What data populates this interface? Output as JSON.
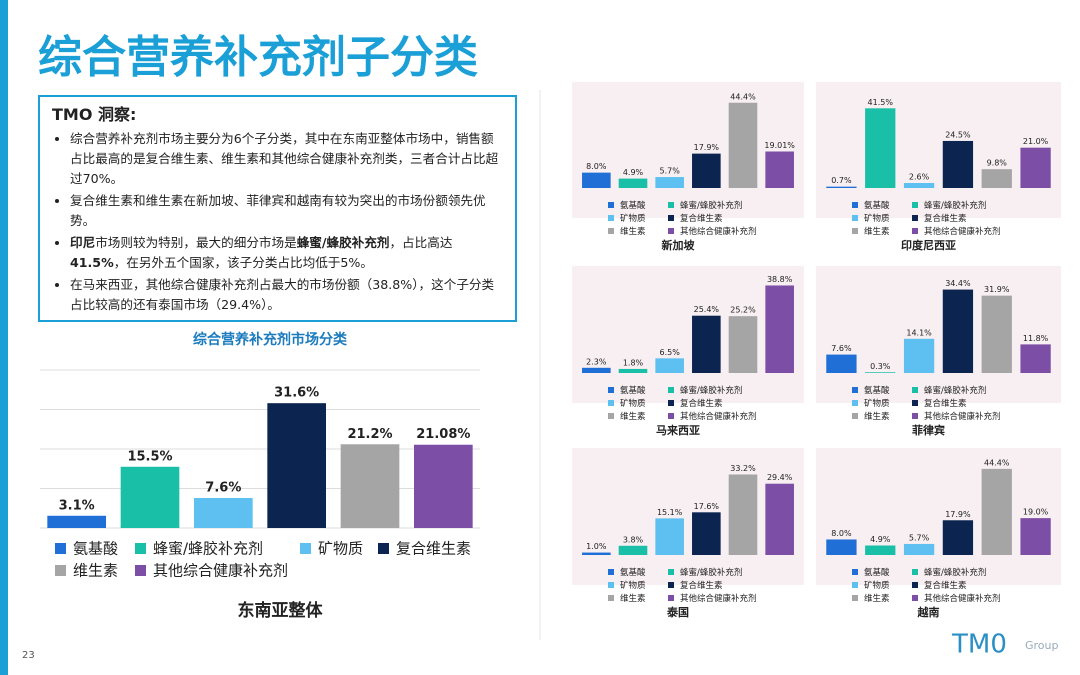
{
  "title": "综合营养补充剂子分类",
  "insights": {
    "heading": "TMO 洞察:",
    "bullets": [
      [
        {
          "text": "综合营养补充剂市场主要分为6个子分类，其中在东南亚整体市场中，销售额占比最高的是复合维生素、维生素和其他综合健康补充剂类，三者合计占比超过70%。",
          "bold": false
        }
      ],
      [
        {
          "text": "复合维生素和维生素在新加坡、菲律宾和越南有较为突出的市场份额领先优势。",
          "bold": false
        }
      ],
      [
        {
          "text": "印尼",
          "bold": true
        },
        {
          "text": "市场则较为特别，最大的细分市场是",
          "bold": false
        },
        {
          "text": "蜂蜜/蜂胶补充剂",
          "bold": true
        },
        {
          "text": "，占比高达",
          "bold": false
        },
        {
          "text": "41.5%",
          "bold": true
        },
        {
          "text": "，在另外五个国家，该子分类占比均低于5%。",
          "bold": false
        }
      ],
      [
        {
          "text": "在马来西亚，其他综合健康补充剂占最大的市场份额（38.8%），这个子分类占比较高的还有泰国市场（29.4%）。",
          "bold": false
        }
      ]
    ]
  },
  "page_number": "23",
  "logo": {
    "mark": "TM0",
    "text": "Group"
  },
  "chart_data": [
    {
      "type": "bar",
      "title": "综合营养补充剂市场分类",
      "caption": "东南亚整体",
      "categories": [
        "氨基酸",
        "蜂蜜/蜂胶补充剂",
        "矿物质",
        "复合维生素",
        "维生素",
        "其他综合健康补充剂"
      ],
      "colors": [
        "#1f6fd6",
        "#19bfa6",
        "#5ec0f0",
        "#0c2450",
        "#a5a5a5",
        "#7d4ea6"
      ],
      "values": [
        3.1,
        15.5,
        7.6,
        31.6,
        21.2,
        21.08
      ],
      "value_labels": [
        "3.1%",
        "15.5%",
        "7.6%",
        "31.6%",
        "21.2%",
        "21.08%"
      ],
      "ylim": [
        0,
        40
      ],
      "yticks": [
        0,
        10,
        20,
        30,
        40
      ],
      "grid": true
    },
    {
      "type": "bar",
      "caption": "新加坡",
      "categories": [
        "氨基酸",
        "蜂蜜/蜂胶补充剂",
        "矿物质",
        "复合维生素",
        "维生素",
        "其他综合健康补充剂"
      ],
      "colors": [
        "#1f6fd6",
        "#19bfa6",
        "#5ec0f0",
        "#0c2450",
        "#a5a5a5",
        "#7d4ea6"
      ],
      "values": [
        8.0,
        4.9,
        5.7,
        17.9,
        44.4,
        19.01
      ],
      "value_labels": [
        "8.0%",
        "4.9%",
        "5.7%",
        "17.9%",
        "44.4%",
        "19.01%"
      ],
      "ylim": [
        0,
        50
      ]
    },
    {
      "type": "bar",
      "caption": "印度尼西亚",
      "categories": [
        "氨基酸",
        "蜂蜜/蜂胶补充剂",
        "矿物质",
        "复合维生素",
        "维生素",
        "其他综合健康补充剂"
      ],
      "colors": [
        "#1f6fd6",
        "#19bfa6",
        "#5ec0f0",
        "#0c2450",
        "#a5a5a5",
        "#7d4ea6"
      ],
      "values": [
        0.7,
        41.5,
        2.6,
        24.5,
        9.8,
        21.0
      ],
      "value_labels": [
        "0.7%",
        "41.5%",
        "2.6%",
        "24.5%",
        "9.8%",
        "21.0%"
      ],
      "ylim": [
        0,
        50
      ]
    },
    {
      "type": "bar",
      "caption": "马来西亚",
      "categories": [
        "氨基酸",
        "蜂蜜/蜂胶补充剂",
        "矿物质",
        "复合维生素",
        "维生素",
        "其他综合健康补充剂"
      ],
      "colors": [
        "#1f6fd6",
        "#19bfa6",
        "#5ec0f0",
        "#0c2450",
        "#a5a5a5",
        "#7d4ea6"
      ],
      "values": [
        2.3,
        1.8,
        6.5,
        25.4,
        25.2,
        38.8
      ],
      "value_labels": [
        "2.3%",
        "1.8%",
        "6.5%",
        "25.4%",
        "25.2%",
        "38.8%"
      ],
      "ylim": [
        0,
        43
      ]
    },
    {
      "type": "bar",
      "caption": "菲律宾",
      "categories": [
        "氨基酸",
        "蜂蜜/蜂胶补充剂",
        "矿物质",
        "复合维生素",
        "维生素",
        "其他综合健康补充剂"
      ],
      "colors": [
        "#1f6fd6",
        "#19bfa6",
        "#5ec0f0",
        "#0c2450",
        "#a5a5a5",
        "#7d4ea6"
      ],
      "values": [
        7.6,
        0.3,
        14.1,
        34.4,
        31.9,
        11.8
      ],
      "value_labels": [
        "7.6%",
        "0.3%",
        "14.1%",
        "34.4%",
        "31.9%",
        "11.8%"
      ],
      "ylim": [
        0,
        40
      ]
    },
    {
      "type": "bar",
      "caption": "泰国",
      "categories": [
        "氨基酸",
        "蜂蜜/蜂胶补充剂",
        "矿物质",
        "复合维生素",
        "维生素",
        "其他综合健康补充剂"
      ],
      "colors": [
        "#1f6fd6",
        "#19bfa6",
        "#5ec0f0",
        "#0c2450",
        "#a5a5a5",
        "#7d4ea6"
      ],
      "values": [
        1.0,
        3.8,
        15.1,
        17.6,
        33.2,
        29.4
      ],
      "value_labels": [
        "1.0%",
        "3.8%",
        "15.1%",
        "17.6%",
        "33.2%",
        "29.4%"
      ],
      "ylim": [
        0,
        40
      ]
    },
    {
      "type": "bar",
      "caption": "越南",
      "categories": [
        "氨基酸",
        "蜂蜜/蜂胶补充剂",
        "矿物质",
        "复合维生素",
        "维生素",
        "其他综合健康补充剂"
      ],
      "colors": [
        "#1f6fd6",
        "#19bfa6",
        "#5ec0f0",
        "#0c2450",
        "#a5a5a5",
        "#7d4ea6"
      ],
      "values": [
        8.0,
        4.9,
        5.7,
        17.9,
        44.4,
        19.0
      ],
      "value_labels": [
        "8.0%",
        "4.9%",
        "5.7%",
        "17.9%",
        "44.4%",
        "19.0%"
      ],
      "ylim": [
        0,
        50
      ]
    }
  ]
}
